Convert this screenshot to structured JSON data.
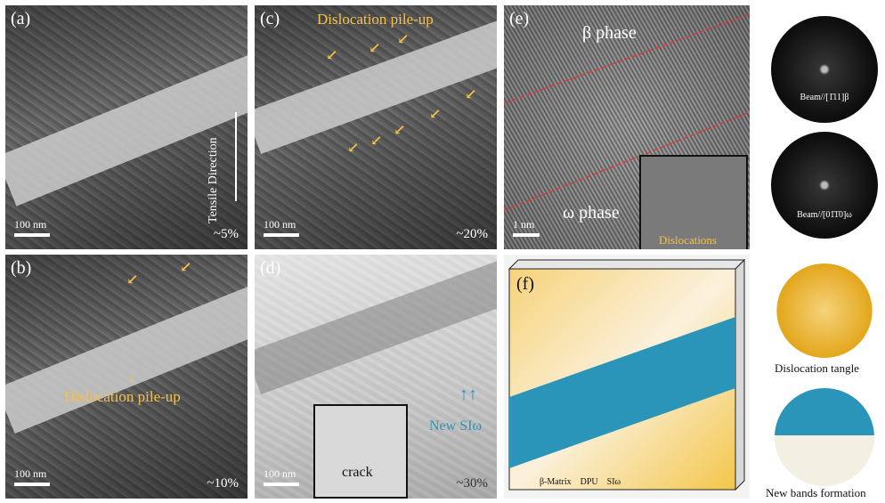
{
  "panels": {
    "a": {
      "letter": "(a)",
      "strain": "~5%",
      "scale": "100 nm",
      "direction": "Tensile Direction"
    },
    "b": {
      "letter": "(b)",
      "strain": "~10%",
      "scale": "100 nm",
      "label": "Dislocation pile-up"
    },
    "c": {
      "letter": "(c)",
      "strain": "~20%",
      "scale": "100 nm",
      "label": "Dislocation pile-up"
    },
    "d": {
      "letter": "(d)",
      "strain": "~30%",
      "scale": "100 nm",
      "inset_label": "crack",
      "new_label": "New SIω"
    },
    "e": {
      "letter": "(e)",
      "beta": "β phase",
      "omega": "ω phase",
      "scale": "1 nm",
      "inset_label": "Dislocations",
      "beam_top": "Beam//[1̄11]β",
      "beam_bottom": "Beam//[01̄1̄0]ω"
    },
    "f": {
      "letter": "(f)",
      "legend": [
        "β-Matrix",
        "DPU",
        "SIω"
      ],
      "right_top": "Dislocation tangle",
      "right_bottom": "New bands formation"
    }
  },
  "colors": {
    "annotation": "#f2c14e",
    "si_omega": "#2a95b8",
    "dpu": "#f3c64a",
    "red_line": "#d93a3a"
  }
}
